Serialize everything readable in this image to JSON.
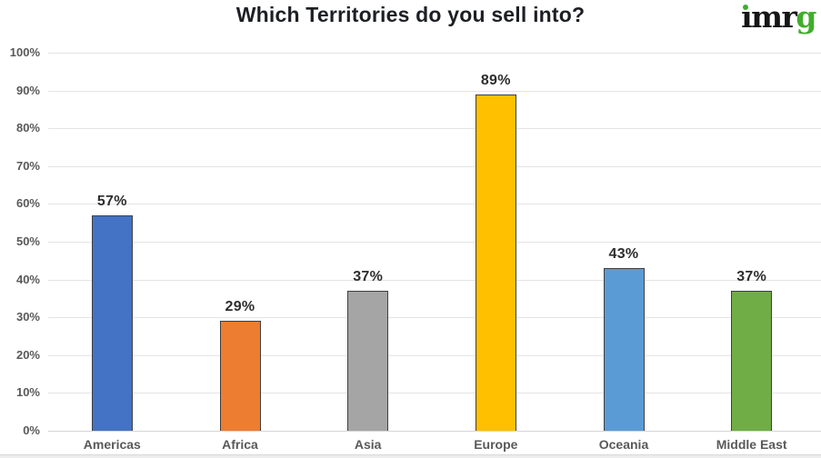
{
  "logo": {
    "text": "imrg",
    "black_text": "ımr",
    "green_text": "g",
    "black_color": "#161616",
    "green_color": "#3fae2a"
  },
  "chart_data": {
    "type": "bar",
    "title": "Which Territories do you sell into?",
    "categories": [
      "Americas",
      "Africa",
      "Asia",
      "Europe",
      "Oceania",
      "Middle East"
    ],
    "values": [
      57,
      29,
      37,
      89,
      43,
      37
    ],
    "value_labels": [
      "57%",
      "29%",
      "37%",
      "89%",
      "43%",
      "37%"
    ],
    "series_colors": [
      "#4472C4",
      "#ED7D31",
      "#A5A5A5",
      "#FFC000",
      "#5B9BD5",
      "#70AD47"
    ],
    "bar_border_color": "#3f3f3f",
    "xlabel": "",
    "ylabel": "",
    "ylim": [
      0,
      100
    ],
    "ytick_step": 10,
    "ytick_labels": [
      "0%",
      "10%",
      "20%",
      "30%",
      "40%",
      "50%",
      "60%",
      "70%",
      "80%",
      "90%",
      "100%"
    ],
    "grid": true,
    "legend": "none",
    "gridline_color": "#e4e4e4",
    "baseline_color": "#d5d5d5",
    "axis_text_color": "#595959",
    "value_text_color": "#2e2e2e",
    "title_color": "#1d1f24"
  }
}
